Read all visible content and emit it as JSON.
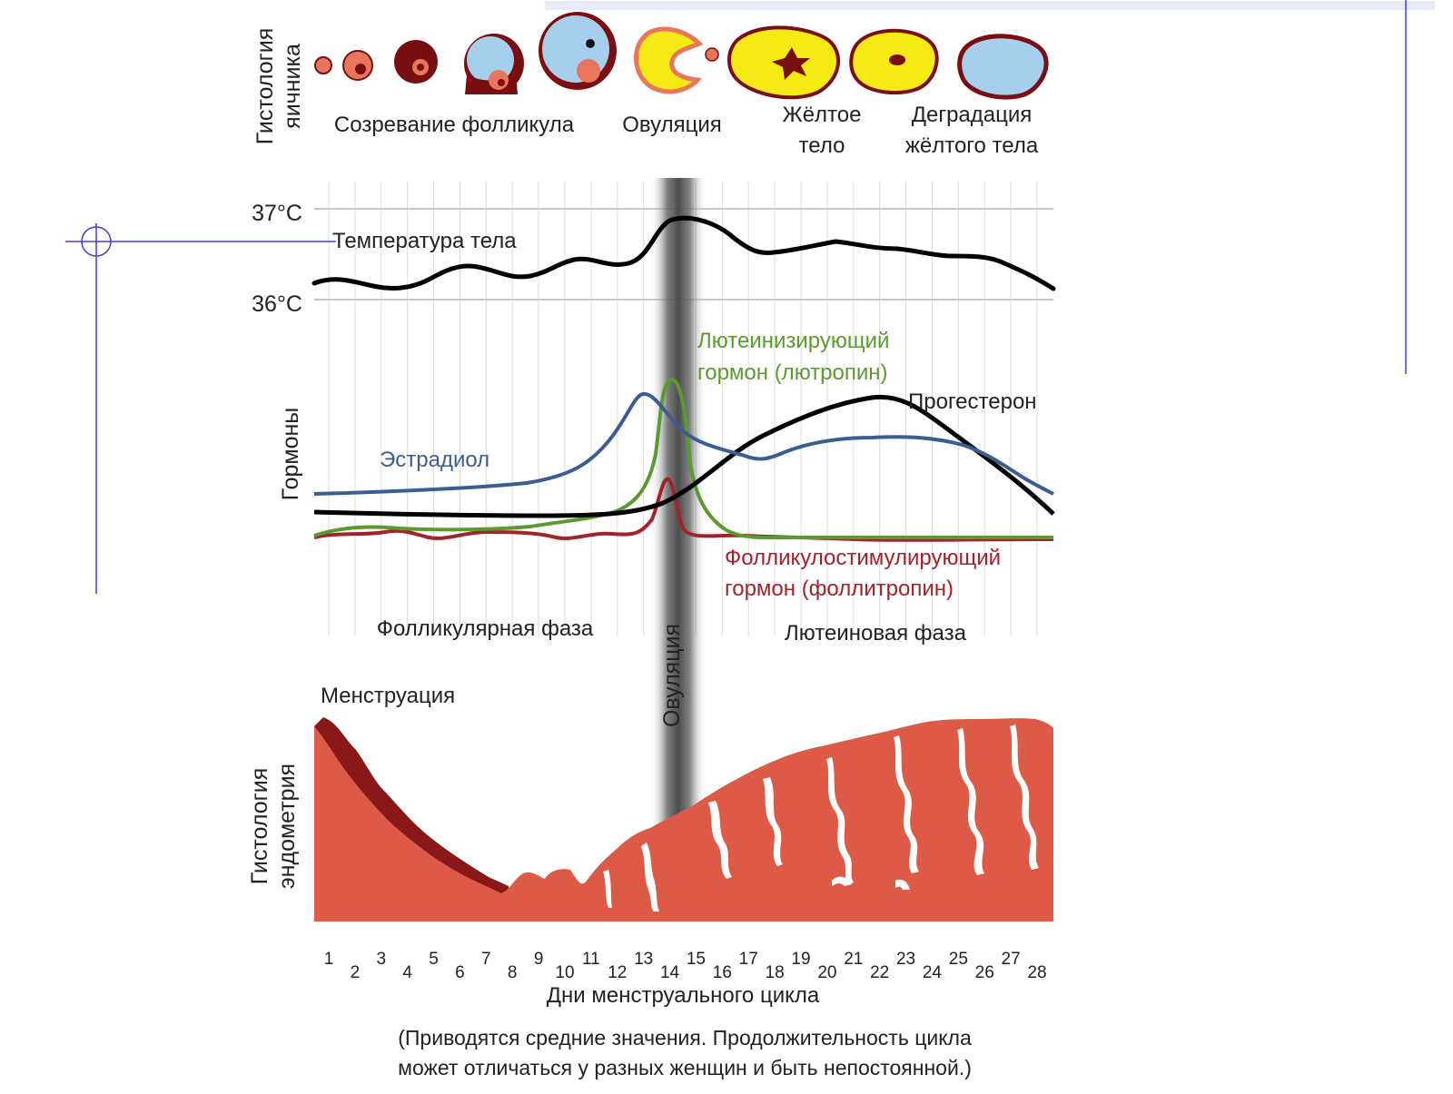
{
  "colors": {
    "background": "#ffffff",
    "grid": "#d0d0d0",
    "temperature": "#000000",
    "estradiol": "#3b5e92",
    "lh": "#5a9a2e",
    "fsh": "#a3232b",
    "progesterone": "#000000",
    "ovulation_band": "#555555",
    "endometrium": "#dd5b46",
    "endometrium_dark": "#8b1818",
    "follicle_blue": "#a6cfee",
    "follicle_yellow": "#f6ea14",
    "follicle_dark": "#7a0f12",
    "follicle_salmon": "#e9765b",
    "guide_line": "#4040e0"
  },
  "ovary_section": {
    "axis_label_line1": "Гистология",
    "axis_label_line2": "яичника",
    "labels": {
      "follicle_maturation": "Созревание фолликула",
      "ovulation": "Овуляция",
      "corpus_luteum_line1": "Жёлтое",
      "corpus_luteum_line2": "тело",
      "degradation_line1": "Деградация",
      "degradation_line2": "жёлтого тела"
    }
  },
  "temperature_section": {
    "upper_tick": "37°C",
    "lower_tick": "36°C",
    "series_label": "Температура тела"
  },
  "hormones_section": {
    "axis_label": "Гормоны",
    "lh_label_line1": "Лютеинизирующий",
    "lh_label_line2": "гормон (лютропин)",
    "progesterone_label": "Прогестерон",
    "estradiol_label": "Эстрадиол",
    "fsh_label_line1": "Фолликулостимулирующий",
    "fsh_label_line2": "гормон (фоллитропин)"
  },
  "phases": {
    "follicular": "Фолликулярная фаза",
    "luteal": "Лютеиновая фаза",
    "ovulation_vertical": "Овуляция"
  },
  "endometrium_section": {
    "axis_label_line1": "Гистология",
    "axis_label_line2": "эндометрия",
    "menstruation_label": "Менструация"
  },
  "x_axis": {
    "label": "Дни менструального цикла",
    "days": [
      "1",
      "2",
      "3",
      "4",
      "5",
      "6",
      "7",
      "8",
      "9",
      "10",
      "11",
      "12",
      "13",
      "14",
      "15",
      "16",
      "17",
      "18",
      "19",
      "20",
      "21",
      "22",
      "23",
      "24",
      "25",
      "26",
      "27",
      "28"
    ]
  },
  "footnote": {
    "line1": "(Приводятся средние значения. Продолжительность цикла",
    "line2": "может отличаться у разных женщин и быть непостоянной.)"
  }
}
